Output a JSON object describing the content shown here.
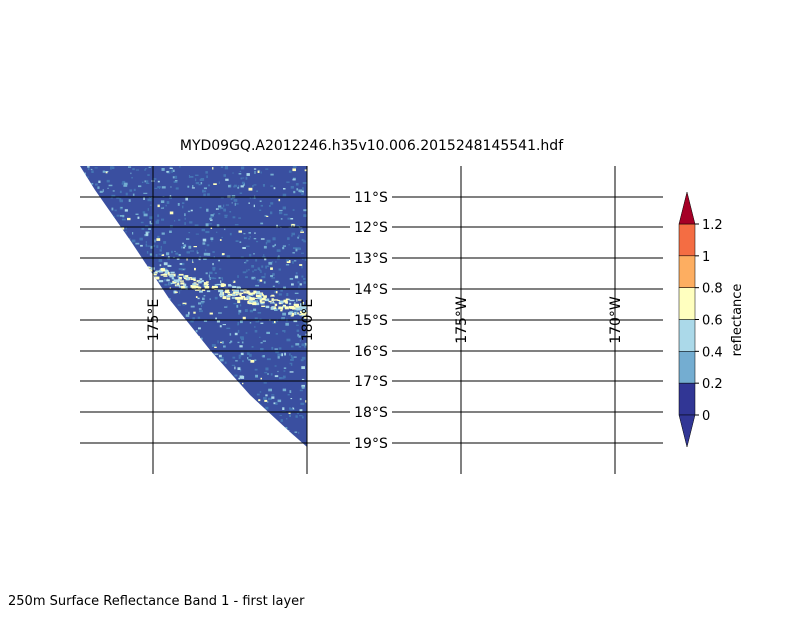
{
  "title": "MYD09GQ.A2012246.h35v10.006.2015248145541.hdf",
  "footer": "250m Surface Reflectance Band 1 - first layer",
  "map": {
    "lat_labels": [
      "11°S",
      "12°S",
      "13°S",
      "14°S",
      "15°S",
      "16°S",
      "17°S",
      "18°S",
      "19°S"
    ],
    "lon_labels": [
      "175°E",
      "180°E",
      "175°W",
      "170°W"
    ]
  },
  "colorbar": {
    "label": "reflectance",
    "ticks": [
      "0",
      "0.2",
      "0.4",
      "0.6",
      "0.8",
      "1",
      "1.2"
    ],
    "colors": [
      "#313695",
      "#4575b4",
      "#74add1",
      "#abd9e9",
      "#ffffbf",
      "#fdae61",
      "#f46d43",
      "#d73027",
      "#a50026"
    ],
    "under_color": "#313695",
    "over_color": "#a50026"
  }
}
